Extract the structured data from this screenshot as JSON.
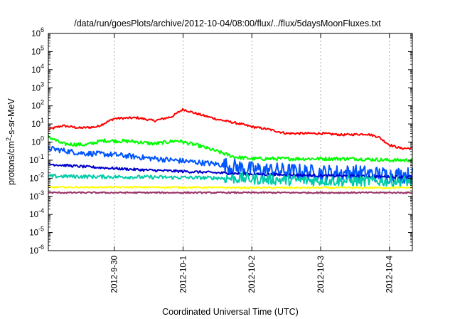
{
  "chart_data": {
    "type": "line",
    "title": "/data/run/goesPlots/archive/2012-10-04/08:00/flux/../flux/5daysMoonFluxes.txt",
    "xlabel": "Coordinated Universal Time (UTC)",
    "ylabel_parts": [
      "protons/cm",
      "2",
      "-s-sr-MeV"
    ],
    "x_axis": {
      "unit": "date",
      "range": [
        "2012-09-29 01:00",
        "2012-10-04 08:00"
      ],
      "ticks": [
        {
          "date": "2012-09-30 00:00",
          "label": "2012-9-30"
        },
        {
          "date": "2012-10-01 00:00",
          "label": "2012-10-1"
        },
        {
          "date": "2012-10-02 00:00",
          "label": "2012-10-2"
        },
        {
          "date": "2012-10-03 00:00",
          "label": "2012-10-3"
        },
        {
          "date": "2012-10-04 00:00",
          "label": "2012-10-4"
        }
      ]
    },
    "y_axis": {
      "scale": "log",
      "range": [
        1e-06,
        1000000.0
      ],
      "ticks": [
        {
          "value": 1e-06,
          "base": "10",
          "exp": "-6"
        },
        {
          "value": 1e-05,
          "base": "10",
          "exp": "-5"
        },
        {
          "value": 0.0001,
          "base": "10",
          "exp": "-4"
        },
        {
          "value": 0.001,
          "base": "10",
          "exp": "-3"
        },
        {
          "value": 0.01,
          "base": "10",
          "exp": "-2"
        },
        {
          "value": 0.1,
          "base": "10",
          "exp": "-1"
        },
        {
          "value": 1,
          "base": "10",
          "exp": "0"
        },
        {
          "value": 10,
          "base": "10",
          "exp": "1"
        },
        {
          "value": 100,
          "base": "10",
          "exp": "2"
        },
        {
          "value": 1000,
          "base": "10",
          "exp": "3"
        },
        {
          "value": 10000,
          "base": "10",
          "exp": "4"
        },
        {
          "value": 100000,
          "base": "10",
          "exp": "5"
        },
        {
          "value": 1000000,
          "base": "10",
          "exp": "6"
        }
      ]
    },
    "grid": "vertical dashed at x ticks",
    "legend": "none",
    "series": [
      {
        "color": "#ff0000",
        "noise": 0.06,
        "points": [
          [
            "2012-09-29 01:00",
            5
          ],
          [
            "2012-09-29 06:00",
            8
          ],
          [
            "2012-09-29 12:00",
            6
          ],
          [
            "2012-09-29 18:00",
            7
          ],
          [
            "2012-09-30 00:00",
            20
          ],
          [
            "2012-09-30 08:00",
            22
          ],
          [
            "2012-09-30 14:00",
            15
          ],
          [
            "2012-09-30 20:00",
            25
          ],
          [
            "2012-10-01 00:00",
            65
          ],
          [
            "2012-10-01 04:00",
            40
          ],
          [
            "2012-10-01 12:00",
            18
          ],
          [
            "2012-10-01 20:00",
            10
          ],
          [
            "2012-10-02 00:00",
            7
          ],
          [
            "2012-10-02 06:00",
            5
          ],
          [
            "2012-10-02 12:00",
            3
          ],
          [
            "2012-10-02 18:00",
            3
          ],
          [
            "2012-10-03 00:00",
            3
          ],
          [
            "2012-10-03 08:00",
            2.5
          ],
          [
            "2012-10-03 16:00",
            2.8
          ],
          [
            "2012-10-03 20:00",
            2
          ],
          [
            "2012-10-04 00:00",
            0.7
          ],
          [
            "2012-10-04 04:00",
            0.45
          ],
          [
            "2012-10-04 08:00",
            0.45
          ]
        ]
      },
      {
        "color": "#00ff00",
        "noise": 0.1,
        "points": [
          [
            "2012-09-29 01:00",
            2
          ],
          [
            "2012-09-29 06:00",
            0.8
          ],
          [
            "2012-09-29 14:00",
            0.7
          ],
          [
            "2012-09-29 20:00",
            1.2
          ],
          [
            "2012-09-30 06:00",
            1.1
          ],
          [
            "2012-09-30 14:00",
            0.8
          ],
          [
            "2012-09-30 22:00",
            1.2
          ],
          [
            "2012-10-01 06:00",
            0.6
          ],
          [
            "2012-10-01 12:00",
            0.3
          ],
          [
            "2012-10-01 18:00",
            0.15
          ],
          [
            "2012-10-02 00:00",
            0.12
          ],
          [
            "2012-10-02 12:00",
            0.12
          ],
          [
            "2012-10-03 00:00",
            0.12
          ],
          [
            "2012-10-03 12:00",
            0.12
          ],
          [
            "2012-10-04 00:00",
            0.1
          ],
          [
            "2012-10-04 08:00",
            0.1
          ]
        ]
      },
      {
        "color": "#0055ff",
        "noise": 0.15,
        "points": [
          [
            "2012-09-29 01:00",
            0.45
          ],
          [
            "2012-09-29 12:00",
            0.25
          ],
          [
            "2012-09-30 00:00",
            0.2
          ],
          [
            "2012-09-30 12:00",
            0.13
          ],
          [
            "2012-10-01 00:00",
            0.09
          ],
          [
            "2012-10-01 12:00",
            0.06
          ],
          [
            "2012-10-02 00:00",
            0.03
          ],
          [
            "2012-10-02 12:00",
            0.025
          ],
          [
            "2012-10-03 00:00",
            0.02
          ],
          [
            "2012-10-03 12:00",
            0.02
          ],
          [
            "2012-10-04 00:00",
            0.015
          ],
          [
            "2012-10-04 08:00",
            0.015
          ]
        ]
      },
      {
        "color": "#0000cc",
        "noise": 0.07,
        "points": [
          [
            "2012-09-29 01:00",
            0.06
          ],
          [
            "2012-09-29 12:00",
            0.045
          ],
          [
            "2012-09-30 00:00",
            0.035
          ],
          [
            "2012-09-30 12:00",
            0.028
          ],
          [
            "2012-10-01 00:00",
            0.024
          ],
          [
            "2012-10-01 12:00",
            0.02
          ],
          [
            "2012-10-02 00:00",
            0.017
          ],
          [
            "2012-10-03 00:00",
            0.014
          ],
          [
            "2012-10-04 00:00",
            0.012
          ],
          [
            "2012-10-04 08:00",
            0.012
          ]
        ]
      },
      {
        "color": "#00ccaa",
        "noise": 0.1,
        "points": [
          [
            "2012-09-29 01:00",
            0.013
          ],
          [
            "2012-09-30 00:00",
            0.012
          ],
          [
            "2012-10-01 00:00",
            0.011
          ],
          [
            "2012-10-01 18:00",
            0.01
          ],
          [
            "2012-10-02 12:00",
            0.008
          ],
          [
            "2012-10-03 12:00",
            0.007
          ],
          [
            "2012-10-04 08:00",
            0.007
          ]
        ]
      },
      {
        "color": "#ffff00",
        "noise": 0.04,
        "points": [
          [
            "2012-09-29 01:00",
            0.0032
          ],
          [
            "2012-09-30 12:00",
            0.0032
          ],
          [
            "2012-10-02 00:00",
            0.003
          ],
          [
            "2012-10-03 12:00",
            0.003
          ],
          [
            "2012-10-04 08:00",
            0.003
          ]
        ]
      },
      {
        "color": "#993366",
        "noise": 0.04,
        "points": [
          [
            "2012-09-29 01:00",
            0.0016
          ],
          [
            "2012-09-30 12:00",
            0.0016
          ],
          [
            "2012-10-02 00:00",
            0.0016
          ],
          [
            "2012-10-03 12:00",
            0.0016
          ],
          [
            "2012-10-04 08:00",
            0.0016
          ]
        ]
      }
    ]
  }
}
